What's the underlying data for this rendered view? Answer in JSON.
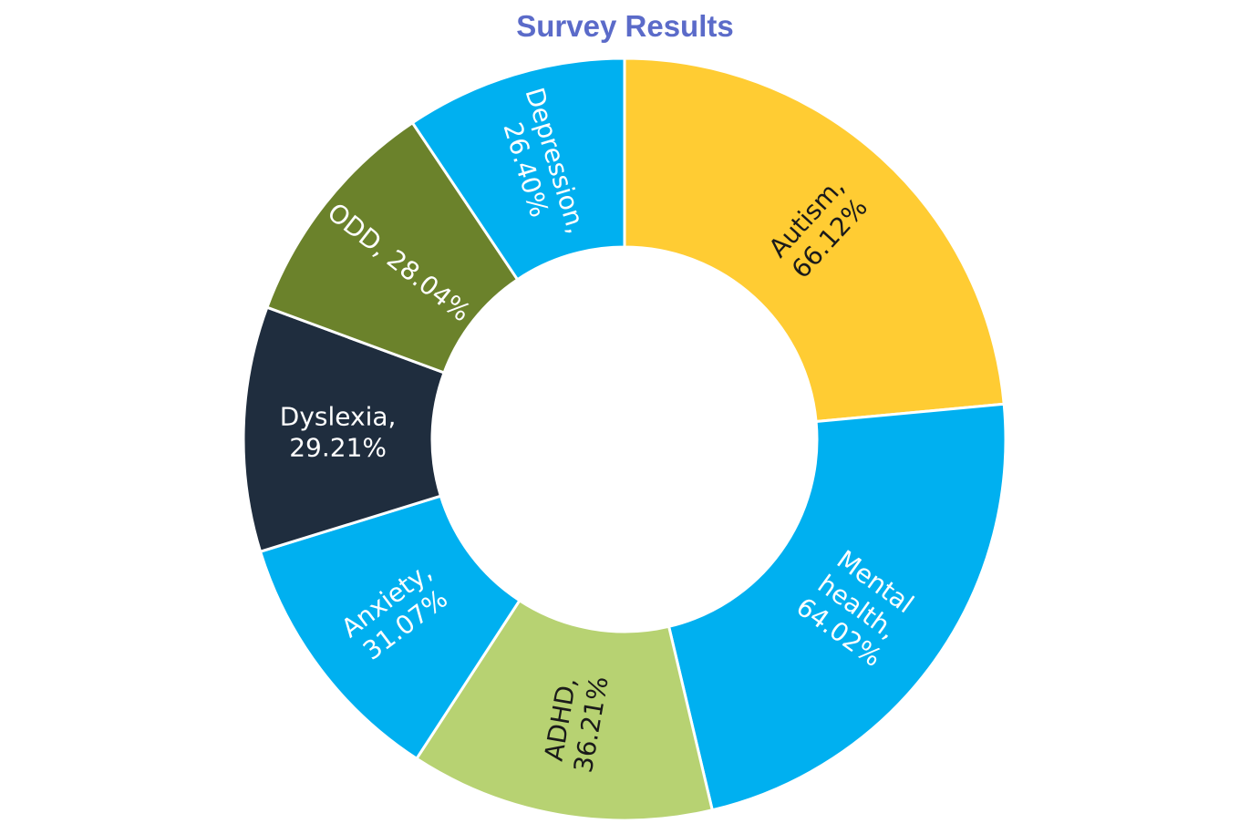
{
  "chart_data": {
    "type": "pie",
    "variant": "donut",
    "title": "Survey Results",
    "unit": "%",
    "slices": [
      {
        "label": "Autism",
        "value": 66.12,
        "display": [
          "Autism,",
          "66.12%"
        ],
        "color": "#FFCC33",
        "text_color": "#1a1a1a"
      },
      {
        "label": "Mental health",
        "value": 64.02,
        "display": [
          "Mental",
          "health,",
          "64.02%"
        ],
        "color": "#00B0F0",
        "text_color": "#ffffff"
      },
      {
        "label": "ADHD",
        "value": 36.21,
        "display": [
          "ADHD,",
          "36.21%"
        ],
        "color": "#B7D272",
        "text_color": "#1a1a1a"
      },
      {
        "label": "Anxiety",
        "value": 31.07,
        "display": [
          "Anxiety,",
          "31.07%"
        ],
        "color": "#00B0F0",
        "text_color": "#ffffff"
      },
      {
        "label": "Dyslexia",
        "value": 29.21,
        "display": [
          "Dyslexia,",
          "29.21%"
        ],
        "color": "#1F2D3E",
        "text_color": "#ffffff"
      },
      {
        "label": "ODD",
        "value": 28.04,
        "display": [
          "ODD, 28.04%"
        ],
        "color": "#6B822B",
        "text_color": "#ffffff"
      },
      {
        "label": "Depression",
        "value": 26.4,
        "display": [
          "Depression,",
          "26.40%"
        ],
        "color": "#00B0F0",
        "text_color": "#ffffff"
      }
    ]
  }
}
